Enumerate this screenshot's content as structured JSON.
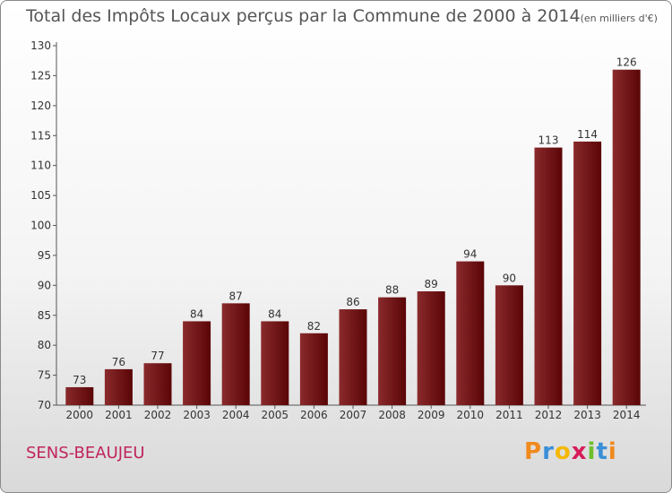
{
  "chart_data": {
    "type": "bar",
    "title": "Total des Impôts Locaux perçus par la Commune de 2000 à 2014",
    "subtitle": "(en milliers d'€)",
    "categories": [
      "2000",
      "2001",
      "2002",
      "2003",
      "2004",
      "2005",
      "2006",
      "2007",
      "2008",
      "2009",
      "2010",
      "2011",
      "2012",
      "2013",
      "2014"
    ],
    "values": [
      73,
      76,
      77,
      84,
      87,
      84,
      82,
      86,
      88,
      89,
      94,
      90,
      113,
      114,
      126
    ],
    "ylim": [
      70,
      130
    ],
    "yticks": [
      70,
      75,
      80,
      85,
      90,
      95,
      100,
      105,
      110,
      115,
      120,
      125,
      130
    ],
    "xlabel": "",
    "ylabel": "",
    "grid": false,
    "bar_color": "#6b0f12"
  },
  "commune": "SENS-BEAUJEU",
  "brand": {
    "letters": [
      "P",
      "r",
      "o",
      "x",
      "i",
      "t",
      "i"
    ],
    "colors": [
      "#f08a1c",
      "#3a8fd6",
      "#f5b800",
      "#d61d5a",
      "#6cbf2a",
      "#3a8fd6",
      "#f08a1c"
    ]
  }
}
